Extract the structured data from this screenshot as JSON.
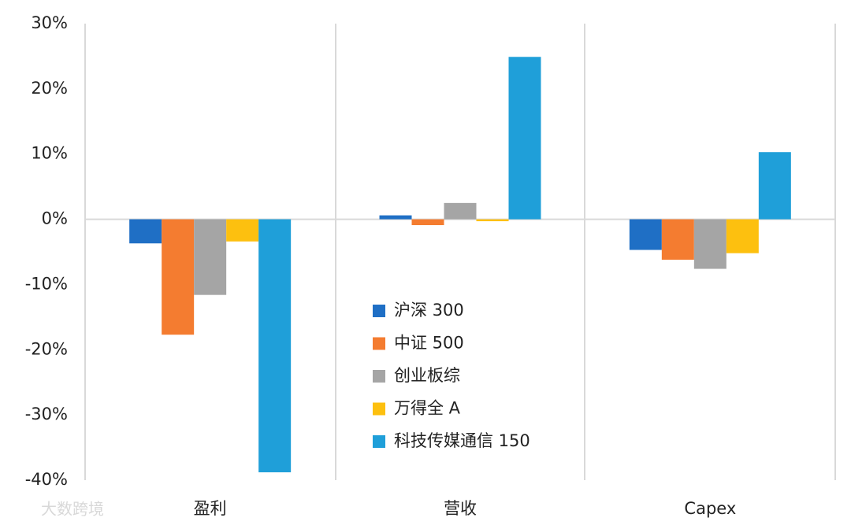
{
  "chart_data": {
    "type": "bar",
    "categories": [
      "盈利",
      "营收",
      "Capex"
    ],
    "series": [
      {
        "name": "沪深 300",
        "color": "#1f6fc5",
        "values": [
          -3.7,
          0.6,
          -4.7
        ]
      },
      {
        "name": "中证 500",
        "color": "#f47c30",
        "values": [
          -17.7,
          -0.9,
          -6.2
        ]
      },
      {
        "name": "创业板综",
        "color": "#a5a5a5",
        "values": [
          -11.6,
          2.5,
          -7.6
        ]
      },
      {
        "name": "万得全 A",
        "color": "#fdc00f",
        "values": [
          -3.4,
          -0.3,
          -5.2
        ]
      },
      {
        "name": "科技传媒通信 150",
        "color": "#1f9fd9",
        "values": [
          -38.8,
          24.9,
          10.3
        ]
      }
    ],
    "ylim": [
      -40,
      30
    ],
    "yticks": [
      {
        "value": 30,
        "label": "30%"
      },
      {
        "value": 20,
        "label": "20%"
      },
      {
        "value": 10,
        "label": "10%"
      },
      {
        "value": 0,
        "label": "0%"
      },
      {
        "value": -10,
        "label": "-10%"
      },
      {
        "value": -20,
        "label": "-20%"
      },
      {
        "value": -30,
        "label": "-30%"
      },
      {
        "value": -40,
        "label": "-40%"
      }
    ],
    "watermark": "大数跨境"
  }
}
